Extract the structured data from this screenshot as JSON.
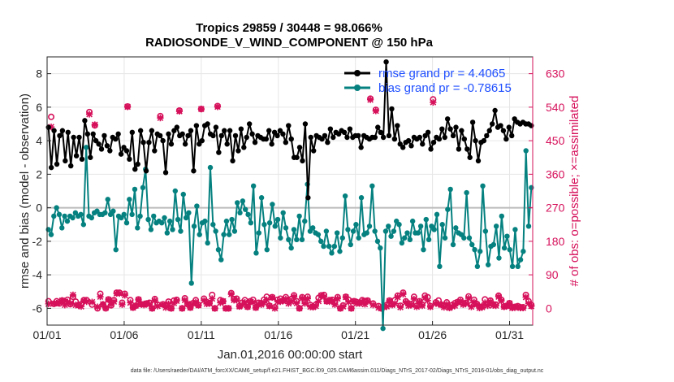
{
  "chart_data": {
    "type": "line",
    "title": [
      "Tropics 29859 / 30448 = 98.066%",
      "RADIOSONDE_V_WIND_COMPONENT @ 150 hPa"
    ],
    "xlabel": "Jan.01,2016 00:00:00 start",
    "ylabel_left": "rmse and bias (model - observation)",
    "ylabel_right": "# of obs: o=possible; ×=assimilated",
    "x_tick_labels": [
      "01/01",
      "01/06",
      "01/11",
      "01/16",
      "01/21",
      "01/26",
      "01/31"
    ],
    "x_tick_values": [
      0,
      5,
      10,
      15,
      20,
      25,
      30
    ],
    "xlim": [
      0,
      31.5
    ],
    "ylim_left": [
      -7,
      9
    ],
    "yticks_left": [
      -6,
      -4,
      -2,
      0,
      2,
      4,
      6,
      8
    ],
    "ylim_right": [
      -45,
      675
    ],
    "yticks_right": [
      0,
      90,
      180,
      270,
      360,
      450,
      540,
      630
    ],
    "zero_line_value": 0,
    "series": [
      {
        "name": "rmse grand pr = 4.4065",
        "color": "#000000",
        "axis": "left",
        "values": [
          4.8,
          2.4,
          4.6,
          2.6,
          4.3,
          4.6,
          2.8,
          4.5,
          2.5,
          4.2,
          3.1,
          4.2,
          2.9,
          5.2,
          4.4,
          3.0,
          4.4,
          4.0,
          3.8,
          3.5,
          4.3,
          3.7,
          3.4,
          4.2,
          4.1,
          4.4,
          3.2,
          3.6,
          3.4,
          2.9,
          4.5,
          2.3,
          2.6,
          4.6,
          3.9,
          2.2,
          3.9,
          4.6,
          3.4,
          4.4,
          4.3,
          4.0,
          2.1,
          4.4,
          3.8,
          4.6,
          4.8,
          4.3,
          4.4,
          3.8,
          4.3,
          4.6,
          2.2,
          4.9,
          3.8,
          4.0,
          4.9,
          5.0,
          4.4,
          4.3,
          4.8,
          3.3,
          4.3,
          4.6,
          3.8,
          4.6,
          2.8,
          4.3,
          3.4,
          4.7,
          3.6,
          4.2,
          5.0,
          4.4,
          3.9,
          4.3,
          4.2,
          4.1,
          4.1,
          4.6,
          3.8,
          4.5,
          4.3,
          4.6,
          4.4,
          3.9,
          4.9,
          4.1,
          3.0,
          3.0,
          3.6,
          2.8,
          5.0,
          0.6,
          4.2,
          3.4,
          4.3,
          4.2,
          4.1,
          4.3,
          3.9,
          4.7,
          4.2,
          4.5,
          4.4,
          4.6,
          4.5,
          4.2,
          4.7,
          4.2,
          4.3,
          4.3,
          3.6,
          4.3,
          4.2,
          4.1,
          4.2,
          4.2,
          4.8,
          4.5,
          4.2,
          8.7,
          4.3,
          5.9,
          4.1,
          4.9,
          3.8,
          3.6,
          3.9,
          4.0,
          3.7,
          4.2,
          4.1,
          4.2,
          3.8,
          4.3,
          4.5,
          3.5,
          3.9,
          4.2,
          4.1,
          4.7,
          4.2,
          5.3,
          4.7,
          4.3,
          4.8,
          3.5,
          4.6,
          4.1,
          3.5,
          3.0,
          5.1,
          4.0,
          2.8,
          3.9,
          4.0,
          4.3,
          4.6,
          5.0,
          5.8,
          4.8,
          4.9,
          4.6,
          4.1,
          4.8,
          4.3,
          5.3,
          5.1,
          5.0,
          5.1,
          5.0,
          5.0,
          4.9
        ]
      },
      {
        "name": "bias grand pr = -0.78615",
        "color": "#058180",
        "axis": "left",
        "values": [
          -1.3,
          -1.6,
          -0.5,
          0.0,
          -0.4,
          -1.2,
          -0.5,
          -0.8,
          -0.5,
          -0.6,
          -0.3,
          -0.5,
          -0.4,
          -1.0,
          3.6,
          -0.5,
          -0.6,
          -0.3,
          -0.2,
          -0.4,
          -0.4,
          -0.3,
          0.5,
          -0.4,
          -0.2,
          -2.5,
          -0.5,
          -0.6,
          -0.4,
          -0.9,
          0.5,
          -0.4,
          1.1,
          -1.2,
          -0.5,
          1.2,
          2.3,
          -0.7,
          -1.3,
          -0.5,
          -0.9,
          -0.8,
          -0.9,
          -0.6,
          -1.5,
          -0.8,
          -1.3,
          1.0,
          -0.7,
          -1.4,
          0.8,
          -0.6,
          -0.3,
          -4.5,
          -1.1,
          0.1,
          -1.6,
          -0.9,
          -0.8,
          -2.1,
          2.4,
          -1.0,
          -1.4,
          -2.5,
          -3.1,
          -1.6,
          -0.8,
          -1.6,
          -0.7,
          -1.4,
          0.3,
          -0.3,
          0.4,
          -0.1,
          -0.4,
          -0.9,
          1.3,
          -2.7,
          -1.5,
          0.6,
          -1.0,
          -2.5,
          -0.9,
          0.2,
          -1.1,
          -0.7,
          -1.8,
          -0.3,
          -1.2,
          -1.9,
          -2.4,
          -1.3,
          -1.9,
          -0.5,
          -1.9,
          -0.8,
          1.4,
          -1.4,
          -1.2,
          -1.5,
          -1.6,
          -2.0,
          -2.3,
          -1.4,
          -2.3,
          -2.7,
          -2.3,
          -1.5,
          -2.6,
          -1.8,
          0.7,
          -1.3,
          -2.2,
          -1.4,
          -1.0,
          -1.8,
          0.6,
          -1.6,
          -1.5,
          -1.1,
          1.3,
          -1.4,
          -2.0,
          -2.4,
          -7.2,
          -1.4,
          -1.1,
          -1.7,
          -1.4,
          -0.8,
          -1.0,
          -2.1,
          -1.8,
          -1.5,
          -1.9,
          -0.8,
          -1.5,
          -1.5,
          -1.1,
          -2.5,
          -0.7,
          -1.9,
          -1.1,
          -1.3,
          -0.4,
          -3.5,
          -1.0,
          -1.8,
          -0.1,
          1.1,
          -2.2,
          -1.2,
          -1.5,
          -1.6,
          -1.8,
          0.9,
          -1.8,
          -2.2,
          -2.5,
          -3.5,
          -2.6,
          1.3,
          -1.4,
          -3.4,
          -2.3,
          -2.2,
          -1.1,
          -3.0,
          -0.5,
          -2.4,
          -1.7,
          -2.5,
          -3.5,
          -1.3,
          -3.5,
          -3.1,
          -2.6,
          3.4,
          -1.1,
          1.2
        ]
      },
      {
        "name": "possible obs",
        "color": "#d6105a",
        "axis": "right",
        "marker": "o",
        "values": [
          19,
          514,
          12,
          19,
          13,
          21,
          18,
          23,
          11,
          31,
          18,
          9,
          11,
          22,
          22,
          527,
          10,
          491,
          0,
          39,
          10,
          0,
          24,
          8,
          22,
          42,
          42,
          15,
          39,
          542,
          22,
          2,
          7,
          24,
          11,
          11,
          13,
          15,
          0,
          25,
          10,
          516,
          11,
          7,
          18,
          0,
          21,
          23,
          531,
          0,
          27,
          11,
          2,
          14,
          22,
          9,
          535,
          26,
          17,
          14,
          36,
          0,
          543,
          22,
          19,
          0,
          0,
          41,
          25,
          26,
          6,
          15,
          22,
          4,
          19,
          23,
          2,
          15,
          14,
          23,
          31,
          7,
          30,
          3,
          23,
          26,
          21,
          30,
          21,
          25,
          35,
          19,
          0,
          30,
          17,
          31,
          9,
          5,
          10,
          28,
          35,
          36,
          19,
          22,
          23,
          15,
          30,
          0,
          8,
          31,
          23,
          0,
          19,
          17,
          15,
          22,
          20,
          21,
          563,
          13,
          533,
          6,
          0,
          5,
          9,
          21,
          11,
          22,
          34,
          7,
          42,
          19,
          13,
          11,
          31,
          7,
          19,
          10,
          34,
          30,
          6,
          561,
          16,
          21,
          10,
          8,
          16,
          3,
          9,
          14,
          17,
          23,
          13,
          15,
          32,
          9,
          23,
          12,
          4,
          5,
          24,
          13,
          21,
          11,
          10,
          34,
          23,
          5,
          7,
          14,
          3,
          4,
          6,
          3,
          3,
          36,
          19,
          9
        ]
      },
      {
        "name": "assimilated obs",
        "color": "#d6105a",
        "axis": "right",
        "marker": "x",
        "values": [
          12,
          487,
          13,
          14,
          15,
          21,
          9,
          17,
          13,
          36,
          9,
          8,
          5,
          20,
          18,
          521,
          17,
          493,
          4,
          31,
          11,
          1,
          23,
          11,
          18,
          40,
          40,
          10,
          35,
          541,
          15,
          2,
          7,
          23,
          11,
          9,
          13,
          11,
          0,
          21,
          6,
          511,
          10,
          2,
          12,
          0,
          14,
          20,
          529,
          0,
          22,
          12,
          2,
          12,
          17,
          8,
          535,
          21,
          12,
          13,
          26,
          0,
          541,
          15,
          19,
          0,
          0,
          38,
          22,
          22,
          5,
          9,
          16,
          4,
          18,
          16,
          2,
          11,
          10,
          15,
          23,
          6,
          29,
          0,
          18,
          18,
          20,
          25,
          13,
          18,
          31,
          14,
          0,
          27,
          13,
          26,
          4,
          3,
          6,
          19,
          34,
          31,
          19,
          18,
          20,
          10,
          26,
          0,
          5,
          30,
          17,
          0,
          19,
          13,
          13,
          18,
          11,
          19,
          560,
          9,
          530,
          2,
          0,
          3,
          5,
          20,
          9,
          13,
          30,
          3,
          38,
          16,
          7,
          9,
          25,
          4,
          17,
          7,
          28,
          21,
          4,
          553,
          13,
          12,
          9,
          3,
          11,
          1,
          5,
          7,
          16,
          19,
          10,
          13,
          27,
          4,
          17,
          10,
          1,
          3,
          15,
          7,
          18,
          8,
          7,
          31,
          20,
          4,
          6,
          13,
          1,
          2,
          5,
          1,
          1,
          30,
          13,
          6
        ]
      }
    ],
    "legend": [
      "rmse grand pr = 4.4065",
      "bias grand pr = -0.78615"
    ],
    "legend_position": "top-right",
    "grid": true
  },
  "footer": "data file: /Users/raeder/DAI/ATM_forcXX/CAM6_setup/f.e21.FHIST_BGC.f09_025.CAM6assim.011/Diags_NTrS_2017-02/Diags_NTrS_2016-01/obs_diag_output.nc",
  "colors": {
    "rmse": "#000000",
    "bias": "#058180",
    "obs": "#d6105a",
    "legend_text": "#1f4fff",
    "zero_line": "#bbbbbb"
  }
}
